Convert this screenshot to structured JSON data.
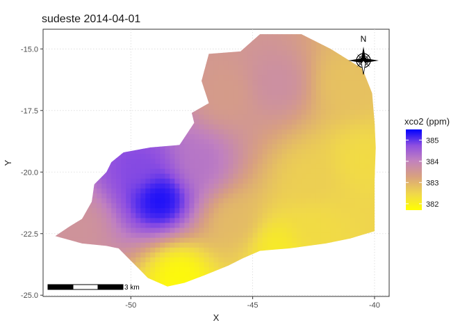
{
  "title": "sudeste 2014-04-01",
  "axes": {
    "xlabel": "X",
    "ylabel": "Y",
    "xlim": [
      -53.6,
      -39.4
    ],
    "ylim": [
      -25.05,
      -14.2
    ],
    "xticks": [
      -50,
      -45,
      -40
    ],
    "yticks": [
      -15.0,
      -17.5,
      -20.0,
      -22.5,
      -25.0
    ],
    "xtick_labels": [
      "-50",
      "-45",
      "-40"
    ],
    "ytick_labels": [
      "-15.0",
      "-17.5",
      "-20.0",
      "-22.5",
      "-25.0"
    ],
    "grid": true
  },
  "legend": {
    "title": "xco2 (ppm)",
    "ticks": [
      385,
      384,
      383,
      382
    ],
    "tick_labels": [
      "385",
      "384",
      "383",
      "382"
    ],
    "range": [
      381.7,
      385.5
    ],
    "colors": {
      "low": "#ffff00",
      "mid": "#c080c0",
      "high": "#0000ff"
    },
    "placement": "right"
  },
  "scale_bar": {
    "label": "3 km"
  },
  "north_arrow": {
    "label": "N",
    "icon": "compass-rose-icon"
  },
  "chart_data": {
    "type": "heatmap",
    "title": "sudeste 2014-04-01",
    "xlabel": "X",
    "ylabel": "Y",
    "value_label": "xco2 (ppm)",
    "xlim": [
      -53.6,
      -39.4
    ],
    "ylim": [
      -25.05,
      -14.2
    ],
    "region_boundary": [
      [
        -53.1,
        -22.6
      ],
      [
        -52.5,
        -22.2
      ],
      [
        -52.0,
        -21.9
      ],
      [
        -51.6,
        -21.2
      ],
      [
        -51.5,
        -20.5
      ],
      [
        -51.0,
        -20.0
      ],
      [
        -50.8,
        -19.6
      ],
      [
        -50.3,
        -19.2
      ],
      [
        -49.2,
        -19.0
      ],
      [
        -48.0,
        -18.9
      ],
      [
        -47.4,
        -18.0
      ],
      [
        -47.5,
        -17.6
      ],
      [
        -46.8,
        -17.2
      ],
      [
        -47.1,
        -16.3
      ],
      [
        -46.8,
        -15.2
      ],
      [
        -45.5,
        -15.1
      ],
      [
        -44.7,
        -14.4
      ],
      [
        -43.0,
        -14.4
      ],
      [
        -41.8,
        -15.0
      ],
      [
        -40.5,
        -15.8
      ],
      [
        -40.1,
        -16.8
      ],
      [
        -40.0,
        -18.0
      ],
      [
        -39.95,
        -19.0
      ],
      [
        -40.0,
        -20.3
      ],
      [
        -40.0,
        -22.4
      ],
      [
        -41.0,
        -22.7
      ],
      [
        -42.0,
        -22.9
      ],
      [
        -43.5,
        -23.1
      ],
      [
        -44.7,
        -23.2
      ],
      [
        -45.4,
        -23.5
      ],
      [
        -46.0,
        -23.8
      ],
      [
        -47.0,
        -24.2
      ],
      [
        -47.8,
        -24.5
      ],
      [
        -48.5,
        -24.65
      ],
      [
        -49.3,
        -24.3
      ],
      [
        -49.6,
        -24.0
      ],
      [
        -50.5,
        -23.1
      ],
      [
        -51.0,
        -23.0
      ],
      [
        -52.0,
        -22.9
      ],
      [
        -53.1,
        -22.6
      ]
    ],
    "field_centers": [
      {
        "x": -48.8,
        "y": -21.1,
        "value": 385.4
      },
      {
        "x": -49.7,
        "y": -19.8,
        "value": 384.8
      },
      {
        "x": -47.2,
        "y": -19.6,
        "value": 384.2
      },
      {
        "x": -44.0,
        "y": -16.4,
        "value": 383.7
      },
      {
        "x": -46.1,
        "y": -16.9,
        "value": 383.4
      },
      {
        "x": -52.2,
        "y": -22.2,
        "value": 383.6
      },
      {
        "x": -42.6,
        "y": -20.3,
        "value": 382.6
      },
      {
        "x": -40.6,
        "y": -19.5,
        "value": 382.4
      },
      {
        "x": -44.0,
        "y": -23.0,
        "value": 382.1
      },
      {
        "x": -48.0,
        "y": -24.2,
        "value": 381.8
      },
      {
        "x": -41.2,
        "y": -16.4,
        "value": 382.8
      },
      {
        "x": -45.7,
        "y": -22.0,
        "value": 382.9
      },
      {
        "x": -42.5,
        "y": -22.3,
        "value": 382.4
      }
    ]
  }
}
